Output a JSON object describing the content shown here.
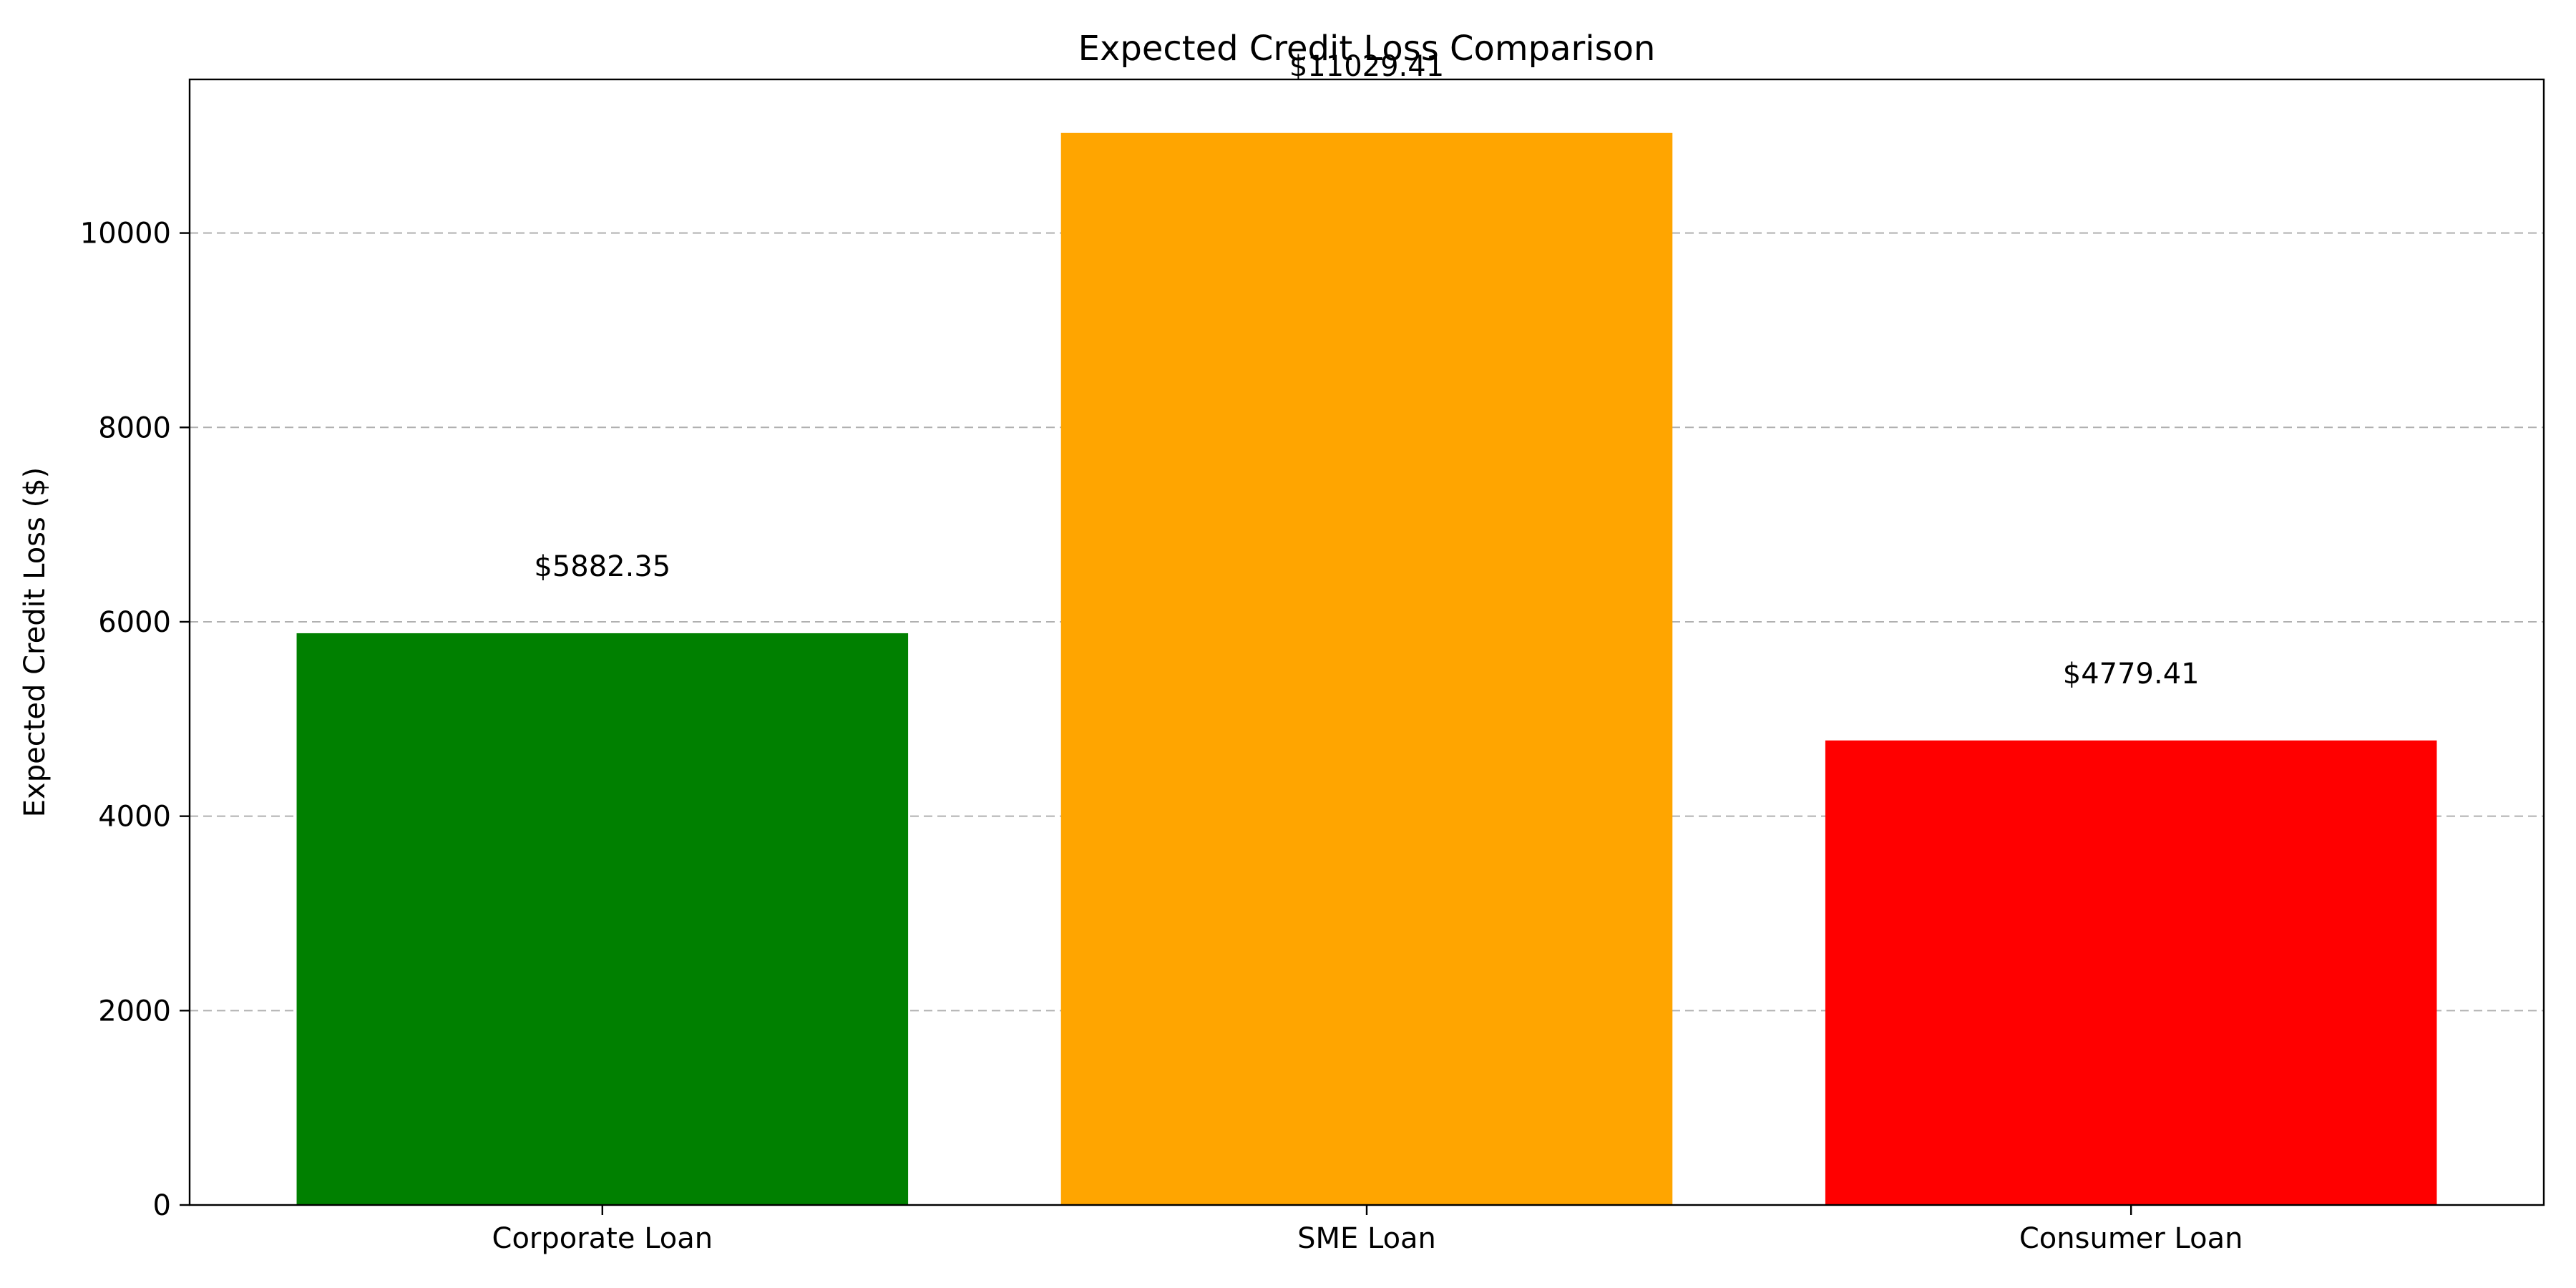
{
  "chart_data": {
    "type": "bar",
    "title": "Expected Credit Loss Comparison",
    "xlabel": "",
    "ylabel": "Expected Credit Loss ($)",
    "categories": [
      "Corporate Loan",
      "SME Loan",
      "Consumer Loan"
    ],
    "values": [
      5882.35,
      11029.41,
      4779.41
    ],
    "value_labels": [
      "$5882.35",
      "$11029.41",
      "$4779.41"
    ],
    "colors": [
      "#008000",
      "#ffa500",
      "#ff0000"
    ],
    "ylim": [
      0,
      11580
    ],
    "yticks": [
      0,
      2000,
      4000,
      6000,
      8000,
      10000
    ],
    "grid": "y-dashed",
    "legend": "none"
  }
}
